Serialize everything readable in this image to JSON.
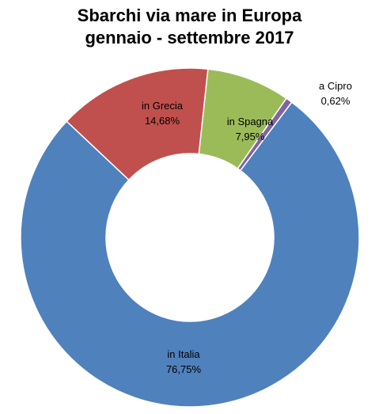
{
  "chart_data": {
    "type": "pie",
    "variant": "donut",
    "title_lines": [
      "Sbarchi via mare in Europa",
      "gennaio - settembre 2017"
    ],
    "slices": [
      {
        "label": "in Italia",
        "value": 76.75,
        "display": "76,75%",
        "color": "#4F81BD"
      },
      {
        "label": "in Grecia",
        "value": 14.68,
        "display": "14,68%",
        "color": "#C0504D"
      },
      {
        "label": "in Spagna",
        "value": 7.95,
        "display": "7,95%",
        "color": "#9BBB59"
      },
      {
        "label": "a Cipro",
        "value": 0.62,
        "display": "0,62%",
        "color": "#8064A2"
      }
    ],
    "legend": "none"
  }
}
